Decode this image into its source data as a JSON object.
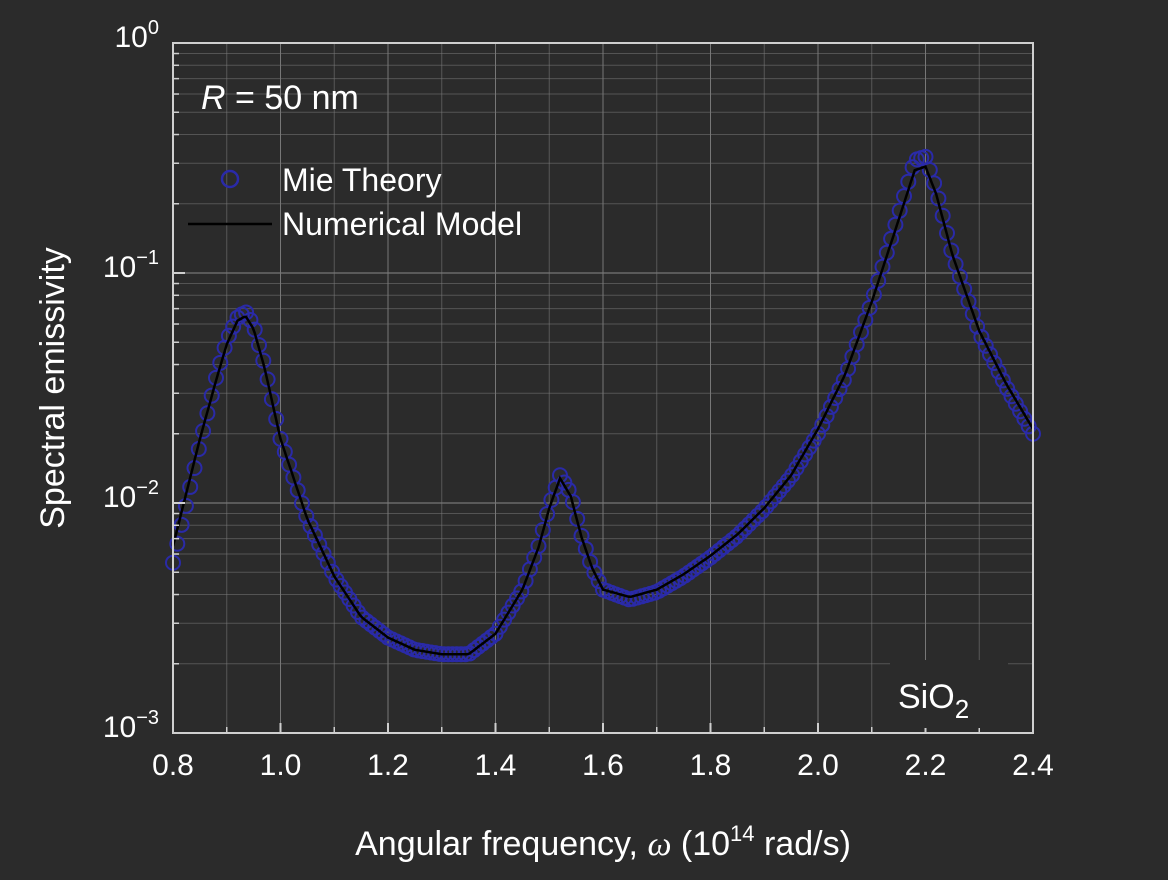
{
  "chart_data": {
    "type": "line",
    "title": "",
    "xlabel": {
      "prefix": "Angular frequency, ",
      "symbol": "ω",
      "unit_open": " (10",
      "unit_exp": "14",
      "unit_close": " rad/s)"
    },
    "ylabel": "Spectral emissivity",
    "xlim": [
      0.8,
      2.4
    ],
    "ylim": [
      0.001,
      1
    ],
    "yscale": "log",
    "grid": true,
    "legend_position": "top-left",
    "xticks": [
      "0.8",
      "1.0",
      "1.2",
      "1.4",
      "1.6",
      "1.8",
      "2.0",
      "2.2",
      "2.4"
    ],
    "yticks": [
      {
        "base": "10",
        "exp": "0"
      },
      {
        "base": "10",
        "exp": "−1"
      },
      {
        "base": "10",
        "exp": "−2"
      },
      {
        "base": "10",
        "exp": "−3"
      }
    ],
    "annotations": {
      "radius": {
        "symbol": "R",
        "text": " = 50 nm"
      },
      "material": {
        "base": "SiO",
        "sub": "2"
      }
    },
    "colors": {
      "mie": "#2a2aa8",
      "model": "#000000",
      "grid": "#777777",
      "axis": "#cfcfcf",
      "background": "#2b2b2b"
    },
    "series": [
      {
        "name": "Mie Theory",
        "style": "markers",
        "x": [
          0.8,
          0.85,
          0.88,
          0.9,
          0.92,
          0.935,
          0.95,
          0.97,
          1.0,
          1.05,
          1.1,
          1.15,
          1.2,
          1.25,
          1.3,
          1.35,
          1.4,
          1.45,
          1.48,
          1.5,
          1.52,
          1.54,
          1.56,
          1.58,
          1.6,
          1.65,
          1.7,
          1.75,
          1.8,
          1.85,
          1.9,
          1.95,
          2.0,
          2.05,
          2.1,
          2.15,
          2.18,
          2.2,
          2.22,
          2.25,
          2.3,
          2.35,
          2.4
        ],
        "y": [
          0.0055,
          0.018,
          0.035,
          0.051,
          0.064,
          0.068,
          0.059,
          0.04,
          0.019,
          0.0085,
          0.0048,
          0.0032,
          0.0026,
          0.0023,
          0.0022,
          0.0022,
          0.0027,
          0.0042,
          0.0065,
          0.0097,
          0.0132,
          0.011,
          0.0072,
          0.0052,
          0.0042,
          0.0038,
          0.0041,
          0.0048,
          0.0058,
          0.0072,
          0.0094,
          0.013,
          0.02,
          0.035,
          0.075,
          0.18,
          0.31,
          0.32,
          0.23,
          0.12,
          0.055,
          0.032,
          0.02
        ]
      },
      {
        "name": "Numerical Model",
        "style": "line",
        "x": [
          0.8,
          0.85,
          0.88,
          0.9,
          0.92,
          0.935,
          0.95,
          0.97,
          1.0,
          1.05,
          1.1,
          1.15,
          1.2,
          1.25,
          1.3,
          1.35,
          1.4,
          1.45,
          1.48,
          1.5,
          1.52,
          1.54,
          1.56,
          1.58,
          1.6,
          1.65,
          1.7,
          1.75,
          1.8,
          1.85,
          1.9,
          1.95,
          2.0,
          2.05,
          2.1,
          2.15,
          2.18,
          2.2,
          2.22,
          2.25,
          2.3,
          2.35,
          2.4
        ],
        "y": [
          0.0065,
          0.019,
          0.034,
          0.049,
          0.062,
          0.065,
          0.057,
          0.039,
          0.019,
          0.0085,
          0.0048,
          0.0032,
          0.0026,
          0.0023,
          0.0022,
          0.0022,
          0.0027,
          0.0042,
          0.0064,
          0.0095,
          0.0128,
          0.0107,
          0.0071,
          0.0052,
          0.0042,
          0.0039,
          0.0042,
          0.0049,
          0.0059,
          0.0073,
          0.0095,
          0.0132,
          0.021,
          0.036,
          0.075,
          0.17,
          0.28,
          0.29,
          0.22,
          0.12,
          0.056,
          0.033,
          0.021
        ]
      }
    ]
  }
}
